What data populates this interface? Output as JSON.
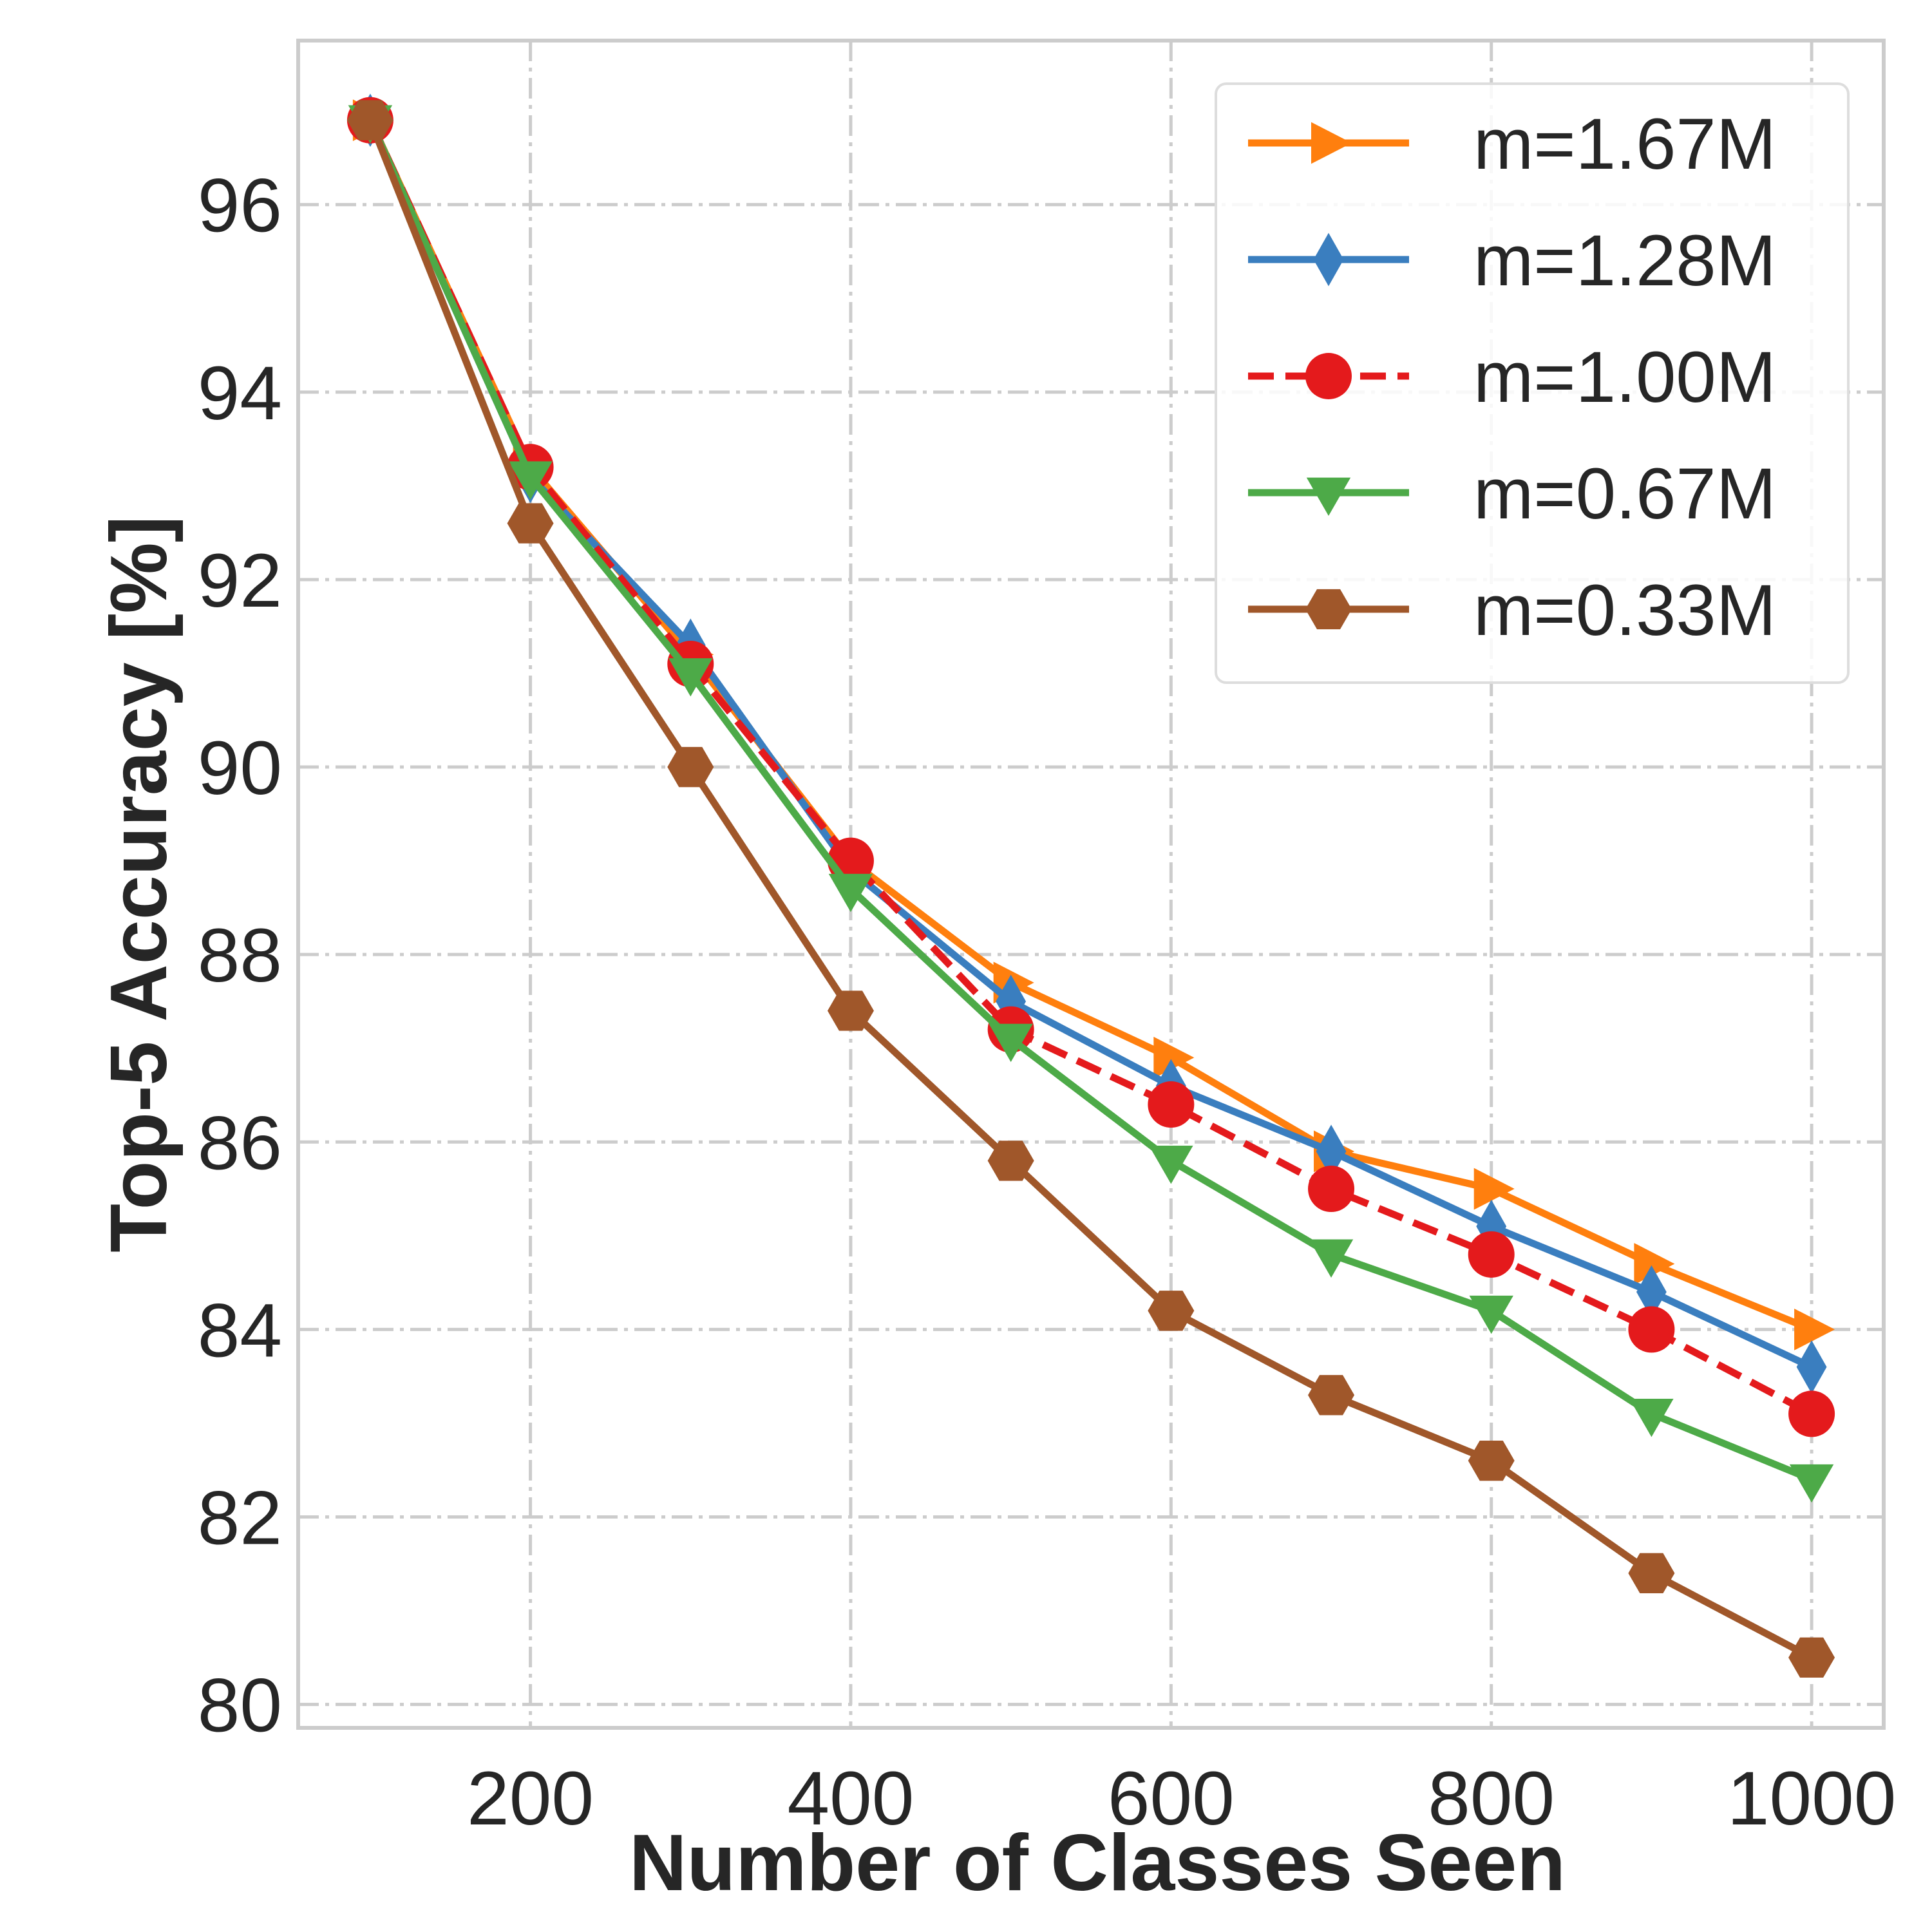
{
  "chart_data": {
    "type": "line",
    "title": "",
    "xlabel": "Number of Classes Seen",
    "ylabel": "Top-5 Accuracy [%]",
    "x": [
      100,
      200,
      300,
      400,
      500,
      600,
      700,
      800,
      900,
      1000
    ],
    "xlim": [
      55,
      1045
    ],
    "ylim": [
      79.75,
      97.75
    ],
    "xticks": [
      200,
      400,
      600,
      800,
      1000
    ],
    "yticks": [
      80,
      82,
      84,
      86,
      88,
      90,
      92,
      94,
      96
    ],
    "grid": true,
    "legend_position": "top-right",
    "series": [
      {
        "name": "m=1.67M",
        "color": "#ff7f0e",
        "marker": "triangle-right",
        "dash": "solid",
        "values": [
          96.9,
          93.2,
          91.2,
          89.0,
          87.7,
          86.9,
          85.9,
          85.5,
          84.7,
          84.0
        ]
      },
      {
        "name": "m=1.28M",
        "color": "#3a7ebf",
        "marker": "thin-diamond",
        "dash": "solid",
        "values": [
          96.9,
          93.1,
          91.3,
          88.9,
          87.5,
          86.6,
          85.9,
          85.1,
          84.4,
          83.6
        ]
      },
      {
        "name": "m=1.00M",
        "color": "#e41a1c",
        "marker": "circle",
        "dash": "dashed",
        "values": [
          96.9,
          93.2,
          91.1,
          89.0,
          87.2,
          86.4,
          85.5,
          84.8,
          84.0,
          83.1
        ]
      },
      {
        "name": "m=0.67M",
        "color": "#4daa48",
        "marker": "triangle-down",
        "dash": "solid",
        "values": [
          96.9,
          93.1,
          91.0,
          88.7,
          87.1,
          85.8,
          84.8,
          84.2,
          83.1,
          82.4
        ]
      },
      {
        "name": "m=0.33M",
        "color": "#a0572a",
        "marker": "hexagon",
        "dash": "solid",
        "values": [
          96.9,
          92.6,
          90.0,
          87.4,
          85.8,
          84.2,
          83.3,
          82.6,
          81.4,
          80.5
        ]
      }
    ]
  }
}
